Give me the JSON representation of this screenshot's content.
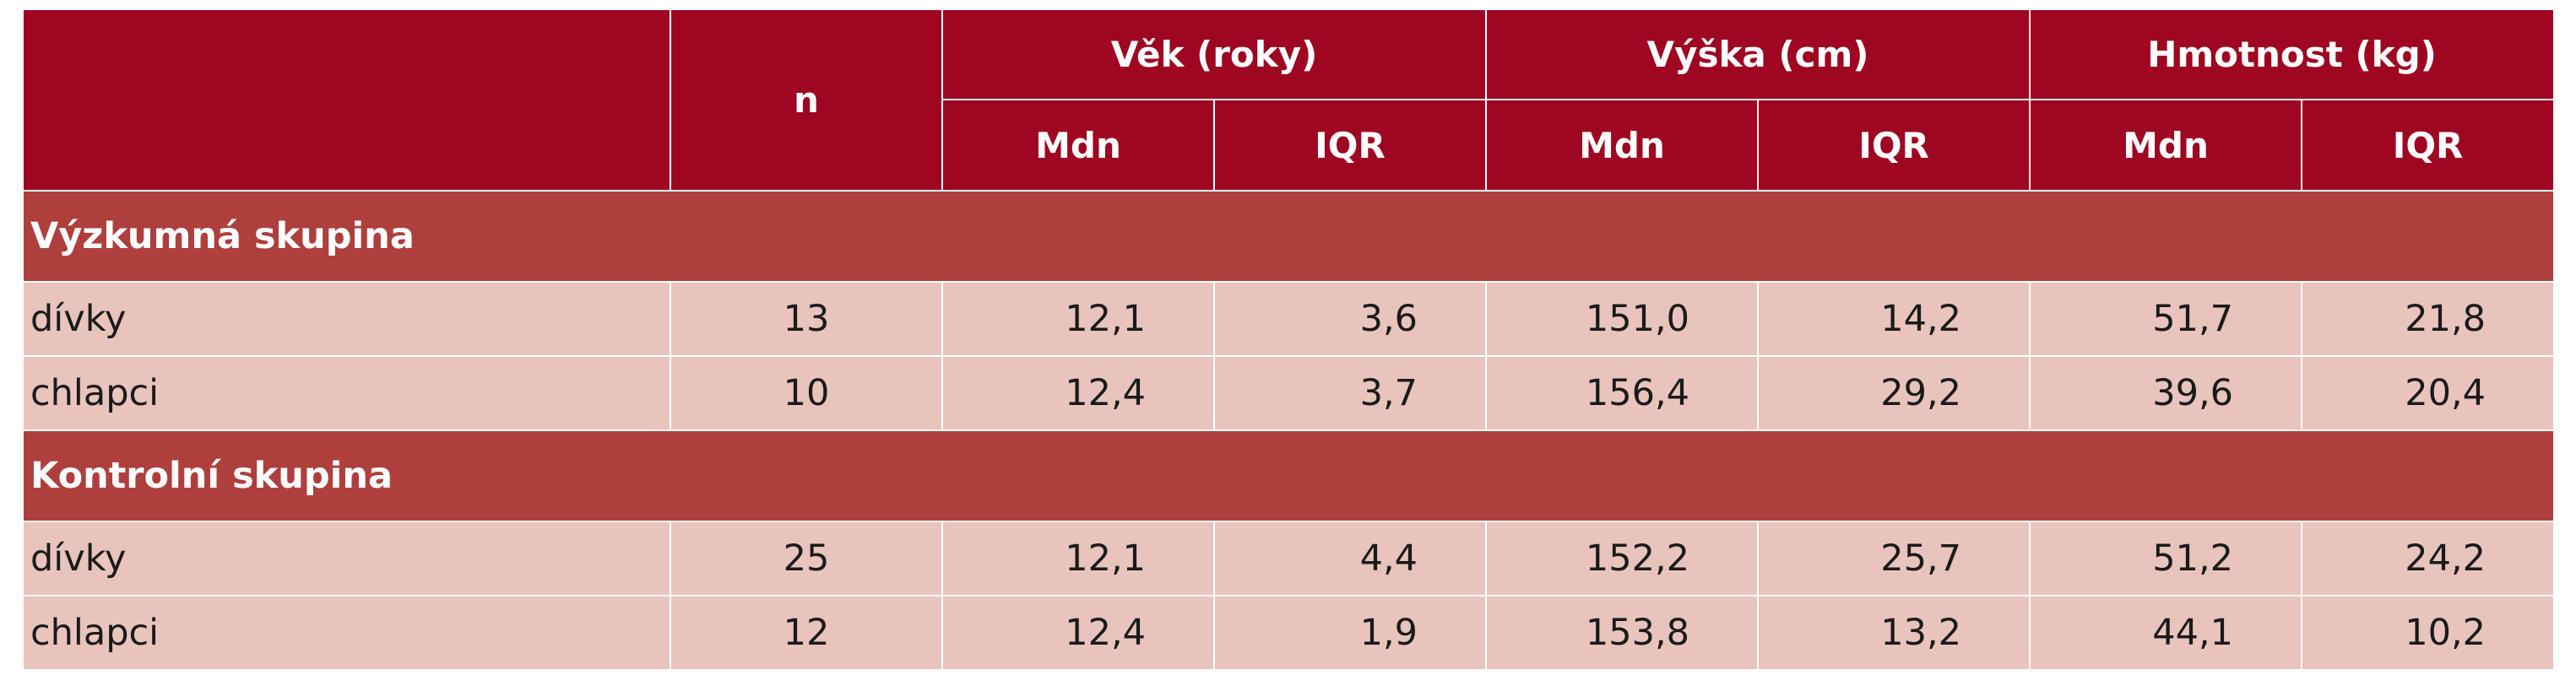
{
  "header": {
    "n": "n",
    "groups": [
      "Věk (roky)",
      "Výška (cm)",
      "Hmotnost (kg)"
    ],
    "sub": [
      "Mdn",
      "IQR",
      "Mdn",
      "IQR",
      "Mdn",
      "IQR"
    ]
  },
  "sections": [
    {
      "title": "Výzkumná skupina",
      "rows": [
        {
          "label": "dívky",
          "values": [
            "13",
            "12,1",
            "3,6",
            "151,0",
            "14,2",
            "51,7",
            "21,8"
          ]
        },
        {
          "label": "chlapci",
          "values": [
            "10",
            "12,4",
            "3,7",
            "156,4",
            "29,2",
            "39,6",
            "20,4"
          ]
        }
      ]
    },
    {
      "title": "Kontrolní skupina",
      "rows": [
        {
          "label": "dívky",
          "values": [
            "25",
            "12,1",
            "4,4",
            "152,2",
            "25,7",
            "51,2",
            "24,2"
          ]
        },
        {
          "label": "chlapci",
          "values": [
            "12",
            "12,4",
            "1,9",
            "153,8",
            "13,2",
            "44,1",
            "10,2"
          ]
        }
      ]
    }
  ],
  "colors": {
    "header_bg": "#9e0621",
    "section_bg": "#af3f3d",
    "row_bg": "#e8c4bd"
  }
}
